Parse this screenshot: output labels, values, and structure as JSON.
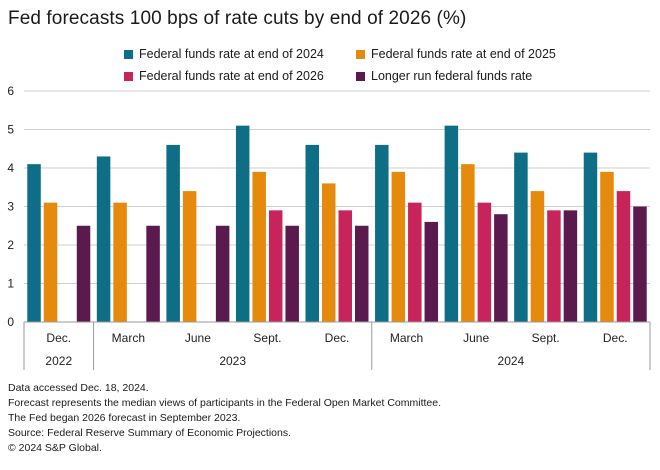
{
  "title": "Fed forecasts 100 bps of rate cuts by end of 2026 (%)",
  "colors": {
    "s2024": "#0e6e86",
    "s2025": "#e58a0c",
    "s2026": "#c8245c",
    "longrun": "#5a1a4e",
    "grid": "#cfcfcf",
    "axis": "#9a9a9a"
  },
  "chart_data": {
    "type": "bar",
    "title": "Fed forecasts 100 bps of rate cuts by end of 2026 (%)",
    "ylim": [
      0,
      6
    ],
    "yticks": [
      0,
      1,
      2,
      3,
      4,
      5,
      6
    ],
    "categories": [
      "Dec.",
      "March",
      "June",
      "Sept.",
      "Dec.",
      "March",
      "June",
      "Sept.",
      "Dec."
    ],
    "groups": [
      {
        "label": "2022",
        "start": 0,
        "end": 0
      },
      {
        "label": "2023",
        "start": 1,
        "end": 4
      },
      {
        "label": "2024",
        "start": 5,
        "end": 8
      }
    ],
    "series": [
      {
        "name": "Federal funds rate at end of 2024",
        "color": "#0e6e86",
        "values": [
          4.1,
          4.3,
          4.6,
          5.1,
          4.6,
          4.6,
          5.1,
          4.4,
          4.4
        ]
      },
      {
        "name": "Federal funds rate at end of 2025",
        "color": "#e58a0c",
        "values": [
          3.1,
          3.1,
          3.4,
          3.9,
          3.6,
          3.9,
          4.1,
          3.4,
          3.9
        ]
      },
      {
        "name": "Federal funds rate at end of 2026",
        "color": "#c8245c",
        "values": [
          null,
          null,
          null,
          2.9,
          2.9,
          3.1,
          3.1,
          2.9,
          3.4
        ]
      },
      {
        "name": "Longer run federal funds rate",
        "color": "#5a1a4e",
        "values": [
          2.5,
          2.5,
          2.5,
          2.5,
          2.5,
          2.6,
          2.8,
          2.9,
          3.0
        ]
      }
    ]
  },
  "notes": [
    "Data accessed Dec. 18, 2024.",
    "Forecast represents the median views of participants in the Federal Open Market Committee.",
    "The Fed began 2026 forecast in September 2023.",
    "Source: Federal Reserve Summary of Economic Projections.",
    "© 2024 S&P Global."
  ]
}
